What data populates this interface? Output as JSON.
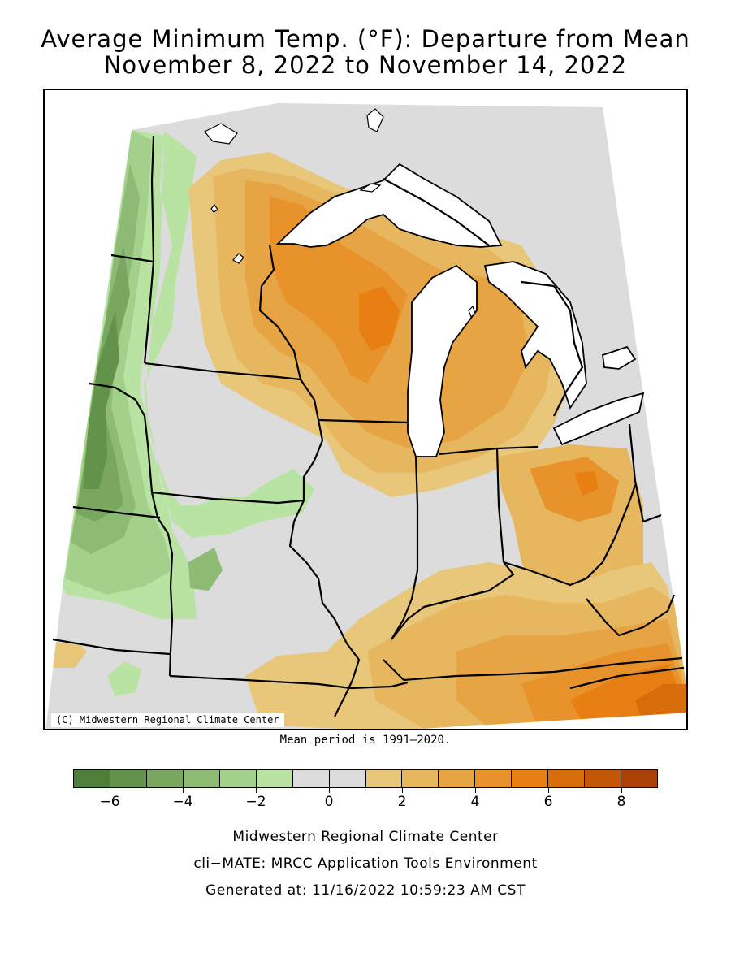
{
  "title": {
    "line1": "Average Minimum Temp. (°F): Departure from Mean",
    "line2": "November 8, 2022 to November 14, 2022"
  },
  "map": {
    "credit": "(C) Midwestern Regional Climate Center",
    "variable": "Average Minimum Temperature departure from mean (°F)",
    "colors": {
      "water": "#ffffff",
      "outside": "#ffffff",
      "border": "#000000"
    }
  },
  "mean_period": "Mean period is 1991–2020.",
  "legend": {
    "bins": [
      {
        "min": -7,
        "max": -6,
        "color": "#4e7f3a"
      },
      {
        "min": -6,
        "max": -5,
        "color": "#63934b"
      },
      {
        "min": -5,
        "max": -4,
        "color": "#79a75f"
      },
      {
        "min": -4,
        "max": -3,
        "color": "#8dbb73"
      },
      {
        "min": -3,
        "max": -2,
        "color": "#a3d08b"
      },
      {
        "min": -2,
        "max": -1,
        "color": "#b8e3a3"
      },
      {
        "min": -1,
        "max": 0,
        "color": "#dcdcdc"
      },
      {
        "min": 0,
        "max": 1,
        "color": "#dcdcdc"
      },
      {
        "min": 1,
        "max": 2,
        "color": "#e8c77a"
      },
      {
        "min": 2,
        "max": 3,
        "color": "#e7b75f"
      },
      {
        "min": 3,
        "max": 4,
        "color": "#e7a445"
      },
      {
        "min": 4,
        "max": 5,
        "color": "#e8922c"
      },
      {
        "min": 5,
        "max": 6,
        "color": "#e77f12"
      },
      {
        "min": 6,
        "max": 7,
        "color": "#d86d0b"
      },
      {
        "min": 7,
        "max": 8,
        "color": "#c35708"
      },
      {
        "min": 8,
        "max": 9,
        "color": "#a94005"
      }
    ],
    "tick_labels": [
      "−6",
      "−4",
      "−2",
      "0",
      "2",
      "4",
      "6",
      "8"
    ],
    "tick_values": [
      -6,
      -4,
      -2,
      0,
      2,
      4,
      6,
      8
    ],
    "range": [
      -7,
      9
    ]
  },
  "footer": {
    "line1": "Midwestern Regional Climate Center",
    "line2": "cli−MATE: MRCC Application Tools Environment",
    "line3": "Generated at: 11/16/2022 10:59:23 AM CST"
  }
}
